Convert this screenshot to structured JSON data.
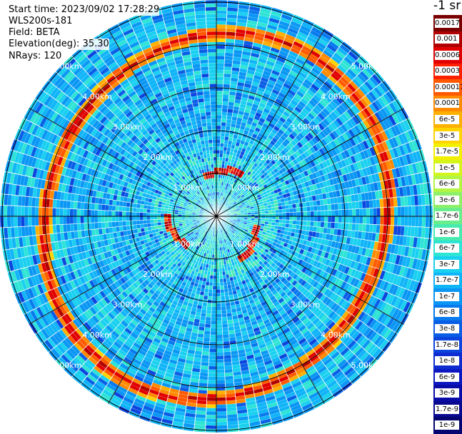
{
  "info": {
    "start_time": "Start time: 2023/09/02 17:28:29",
    "instrument": "WLS200s-181",
    "field": "Field: BETA",
    "elevation": "Elevation(deg): 35.30",
    "nrays": "NRays: 120"
  },
  "range_labels": [
    "1.00km",
    "2.00km",
    "3.00km",
    "4.00km",
    "5.00km"
  ],
  "colorbar": {
    "unit_label": "-1 sr",
    "levels": [
      "0.0017",
      "0.001",
      "0.0006",
      "0.0003",
      "0.00017",
      "0.0001",
      "6e-5",
      "3e-5",
      "1.7e-5",
      "1e-5",
      "6e-6",
      "3e-6",
      "1.7e-6",
      "1e-6",
      "6e-7",
      "3e-7",
      "1.7e-7",
      "1e-7",
      "6e-8",
      "3e-8",
      "1.7e-8",
      "1e-8",
      "6e-9",
      "3e-9",
      "1.7e-9",
      "1e-9"
    ],
    "colors": [
      "#7a0000",
      "#b00000",
      "#e00000",
      "#ff2000",
      "#ff5a00",
      "#ff8a00",
      "#ffb000",
      "#ffd400",
      "#f2ef00",
      "#d4f51a",
      "#b2f544",
      "#8ef068",
      "#6aee8c",
      "#48eab0",
      "#2ee4d4",
      "#1ad0f0",
      "#10b4f8",
      "#0a96f4",
      "#087aee",
      "#0a5ee6",
      "#0c44de",
      "#0e2cd0",
      "#0c18c0",
      "#0a0ca8",
      "#080890",
      "#040470"
    ]
  }
}
